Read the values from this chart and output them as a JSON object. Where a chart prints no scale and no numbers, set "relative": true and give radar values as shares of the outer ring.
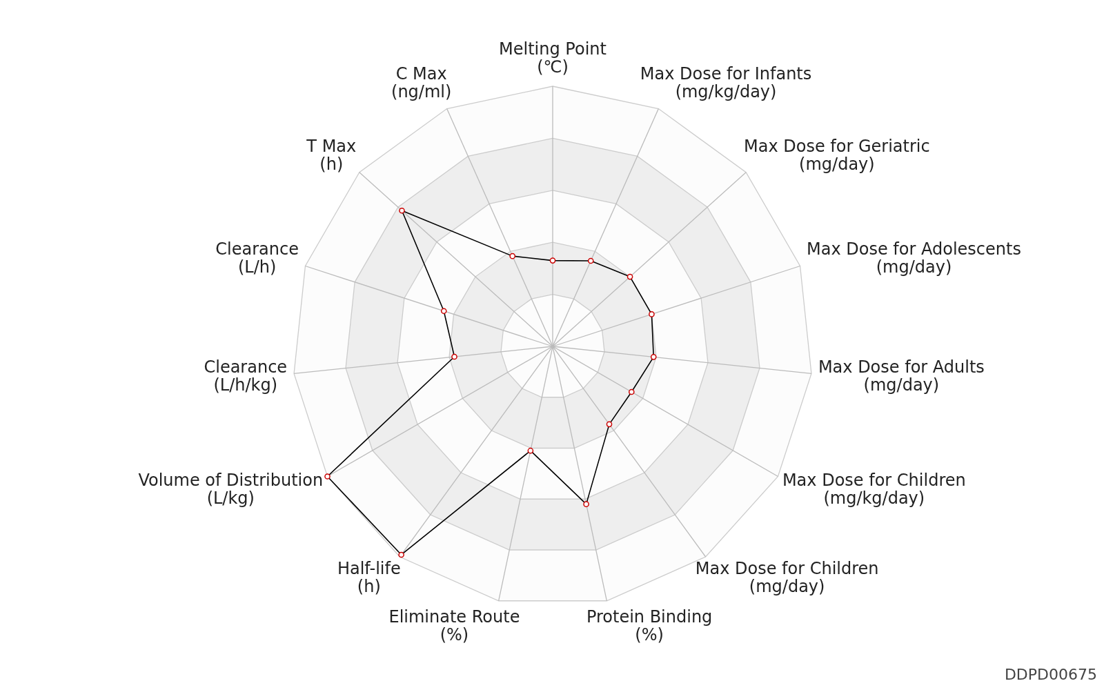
{
  "chart_data": {
    "type": "radar",
    "relative": true,
    "marker": "circle",
    "categories": [
      "Melting Point\n(℃)",
      "Max Dose for Infants\n(mg/kg/day)",
      "Max Dose for Geriatric\n(mg/day)",
      "Max Dose for Adolescents\n(mg/day)",
      "Max Dose for Adults\n(mg/day)",
      "Max Dose for Children\n(mg/kg/day)",
      "Max Dose for Children\n(mg/day)",
      "Protein Binding\n(%)",
      "Eliminate Route\n(%)",
      "Half-life\n(h)",
      "Volume of Distribution\n(L/kg)",
      "Clearance\n(L/h/kg)",
      "Clearance\n(L/h)",
      "T Max\n(h)",
      "C Max\n(ng/ml)"
    ],
    "series": [
      {
        "color": "#000000",
        "values": [
          0.33,
          0.36,
          0.4,
          0.4,
          0.39,
          0.35,
          0.37,
          0.62,
          0.41,
          0.99,
          1,
          0.38,
          0.44,
          0.78,
          0.38
        ]
      }
    ],
    "annotations": [
      "DDPD00675"
    ]
  }
}
